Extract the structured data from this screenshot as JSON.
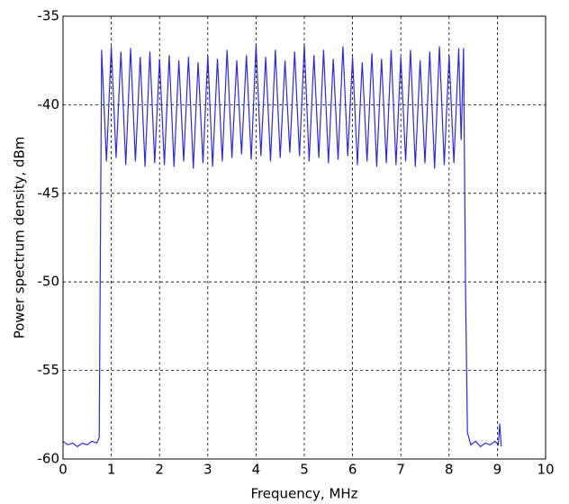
{
  "chart_data": {
    "type": "line",
    "xlabel": "Frequency, MHz",
    "ylabel": "Power spectrum density, dBm",
    "color": "#2a2ae0",
    "grid": true,
    "xlim": [
      0,
      10
    ],
    "ylim": [
      -60,
      -35
    ],
    "xticks": [
      0,
      1,
      2,
      3,
      4,
      5,
      6,
      7,
      8,
      9,
      10
    ],
    "yticks": [
      -60,
      -55,
      -50,
      -45,
      -40,
      -35
    ],
    "x": [
      0,
      0.1,
      0.2,
      0.3,
      0.4,
      0.5,
      0.6,
      0.7,
      0.75,
      0.8,
      0.9,
      1.0,
      1.1,
      1.2,
      1.3,
      1.4,
      1.5,
      1.6,
      1.7,
      1.8,
      1.9,
      2.0,
      2.1,
      2.2,
      2.3,
      2.4,
      2.5,
      2.6,
      2.7,
      2.8,
      2.9,
      3.0,
      3.1,
      3.2,
      3.3,
      3.4,
      3.5,
      3.6,
      3.7,
      3.8,
      3.9,
      4.0,
      4.1,
      4.2,
      4.3,
      4.4,
      4.5,
      4.6,
      4.7,
      4.8,
      4.9,
      5.0,
      5.1,
      5.2,
      5.3,
      5.4,
      5.5,
      5.6,
      5.7,
      5.8,
      5.9,
      6.0,
      6.1,
      6.2,
      6.3,
      6.4,
      6.5,
      6.6,
      6.7,
      6.8,
      6.9,
      7.0,
      7.1,
      7.2,
      7.3,
      7.4,
      7.5,
      7.6,
      7.7,
      7.8,
      7.9,
      8.0,
      8.1,
      8.2,
      8.25,
      8.3,
      8.34,
      8.38,
      8.45,
      8.55,
      8.65,
      8.75,
      8.85,
      8.95,
      9.02,
      9.05,
      9.08
    ],
    "values": [
      -59.0,
      -59.2,
      -59.1,
      -59.3,
      -59.1,
      -59.2,
      -59.0,
      -59.1,
      -58.8,
      -36.9,
      -43.2,
      -36.7,
      -43.0,
      -37.0,
      -43.4,
      -36.8,
      -43.2,
      -37.3,
      -43.5,
      -37.0,
      -43.3,
      -37.4,
      -43.4,
      -37.2,
      -43.5,
      -37.5,
      -43.2,
      -37.3,
      -43.6,
      -37.6,
      -43.3,
      -37.2,
      -43.5,
      -37.4,
      -43.2,
      -36.9,
      -43.0,
      -37.5,
      -42.8,
      -37.2,
      -43.1,
      -36.6,
      -42.9,
      -37.3,
      -43.2,
      -36.9,
      -43.0,
      -37.5,
      -42.7,
      -37.0,
      -42.9,
      -36.6,
      -43.2,
      -37.2,
      -43.0,
      -36.9,
      -43.3,
      -37.4,
      -43.1,
      -36.7,
      -42.9,
      -37.3,
      -43.4,
      -37.6,
      -43.2,
      -37.1,
      -43.5,
      -37.4,
      -43.3,
      -36.9,
      -43.4,
      -37.3,
      -43.2,
      -36.9,
      -43.5,
      -37.5,
      -43.3,
      -37.0,
      -43.6,
      -36.7,
      -43.4,
      -37.2,
      -43.3,
      -36.8,
      -42.0,
      -36.8,
      -50.0,
      -58.5,
      -59.2,
      -59.0,
      -59.3,
      -59.1,
      -59.2,
      -59.0,
      -59.2,
      -58.0,
      -59.3
    ]
  }
}
